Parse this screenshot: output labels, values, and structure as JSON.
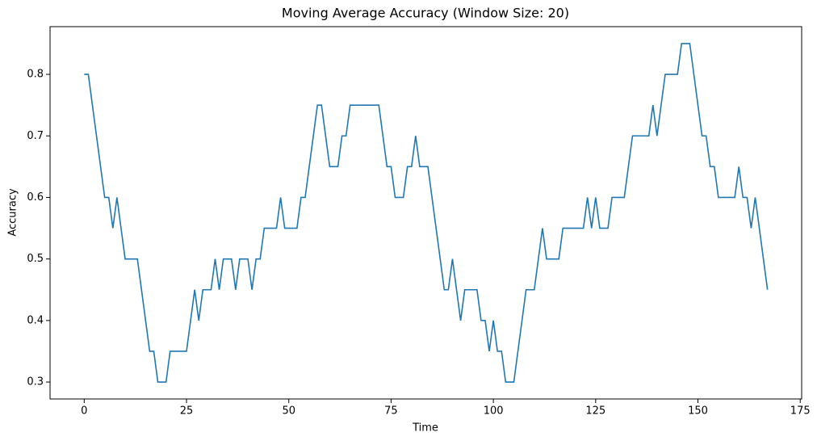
{
  "chart_data": {
    "type": "line",
    "title": "Moving Average Accuracy (Window Size: 20)",
    "x_label": "Time",
    "y_label": "Accuracy",
    "x": [
      0,
      1,
      2,
      3,
      4,
      5,
      6,
      7,
      8,
      9,
      10,
      11,
      12,
      13,
      14,
      15,
      16,
      17,
      18,
      19,
      20,
      21,
      22,
      23,
      24,
      25,
      26,
      27,
      28,
      29,
      30,
      31,
      32,
      33,
      34,
      35,
      36,
      37,
      38,
      39,
      40,
      41,
      42,
      43,
      44,
      45,
      46,
      47,
      48,
      49,
      50,
      51,
      52,
      53,
      54,
      55,
      56,
      57,
      58,
      59,
      60,
      61,
      62,
      63,
      64,
      65,
      66,
      67,
      68,
      69,
      70,
      71,
      72,
      73,
      74,
      75,
      76,
      77,
      78,
      79,
      80,
      81,
      82,
      83,
      84,
      85,
      86,
      87,
      88,
      89,
      90,
      91,
      92,
      93,
      94,
      95,
      96,
      97,
      98,
      99,
      100,
      101,
      102,
      103,
      104,
      105,
      106,
      107,
      108,
      109,
      110,
      111,
      112,
      113,
      114,
      115,
      116,
      117,
      118,
      119,
      120,
      121,
      122,
      123,
      124,
      125,
      126,
      127,
      128,
      129,
      130,
      131,
      132,
      133,
      134,
      135,
      136,
      137,
      138,
      139,
      140,
      141,
      142,
      143,
      144,
      145,
      146,
      147,
      148,
      149,
      150,
      151,
      152,
      153,
      154,
      155,
      156,
      157,
      158,
      159,
      160,
      161,
      162,
      163,
      164,
      165,
      166,
      167
    ],
    "values": [
      0.8,
      0.8,
      0.75,
      0.7,
      0.65,
      0.6,
      0.6,
      0.55,
      0.6,
      0.55,
      0.5,
      0.5,
      0.5,
      0.5,
      0.45,
      0.4,
      0.35,
      0.35,
      0.3,
      0.3,
      0.3,
      0.35,
      0.35,
      0.35,
      0.35,
      0.35,
      0.4,
      0.45,
      0.4,
      0.45,
      0.45,
      0.45,
      0.5,
      0.45,
      0.5,
      0.5,
      0.5,
      0.45,
      0.5,
      0.5,
      0.5,
      0.45,
      0.5,
      0.5,
      0.55,
      0.55,
      0.55,
      0.55,
      0.6,
      0.55,
      0.55,
      0.55,
      0.55,
      0.6,
      0.6,
      0.65,
      0.7,
      0.75,
      0.75,
      0.7,
      0.65,
      0.65,
      0.65,
      0.7,
      0.7,
      0.75,
      0.75,
      0.75,
      0.75,
      0.75,
      0.75,
      0.75,
      0.75,
      0.7,
      0.65,
      0.65,
      0.6,
      0.6,
      0.6,
      0.65,
      0.65,
      0.7,
      0.65,
      0.65,
      0.65,
      0.6,
      0.55,
      0.5,
      0.45,
      0.45,
      0.5,
      0.45,
      0.4,
      0.45,
      0.45,
      0.45,
      0.45,
      0.4,
      0.4,
      0.35,
      0.4,
      0.35,
      0.35,
      0.3,
      0.3,
      0.3,
      0.35,
      0.4,
      0.45,
      0.45,
      0.45,
      0.5,
      0.55,
      0.5,
      0.5,
      0.5,
      0.5,
      0.55,
      0.55,
      0.55,
      0.55,
      0.55,
      0.55,
      0.6,
      0.55,
      0.6,
      0.55,
      0.55,
      0.55,
      0.6,
      0.6,
      0.6,
      0.6,
      0.65,
      0.7,
      0.7,
      0.7,
      0.7,
      0.7,
      0.75,
      0.7,
      0.75,
      0.8,
      0.8,
      0.8,
      0.8,
      0.85,
      0.85,
      0.85,
      0.8,
      0.75,
      0.7,
      0.7,
      0.65,
      0.65,
      0.6,
      0.6,
      0.6,
      0.6,
      0.6,
      0.65,
      0.6,
      0.6,
      0.55,
      0.6,
      0.55,
      0.5,
      0.45
    ],
    "color": "#1f77b4",
    "xlim": [
      -8.35,
      175.35
    ],
    "ylim": [
      0.2725,
      0.8775
    ],
    "xticks": [
      0,
      25,
      50,
      75,
      100,
      125,
      150,
      175
    ],
    "yticks": [
      0.3,
      0.4,
      0.5,
      0.6,
      0.7,
      0.8
    ],
    "grid": false
  }
}
